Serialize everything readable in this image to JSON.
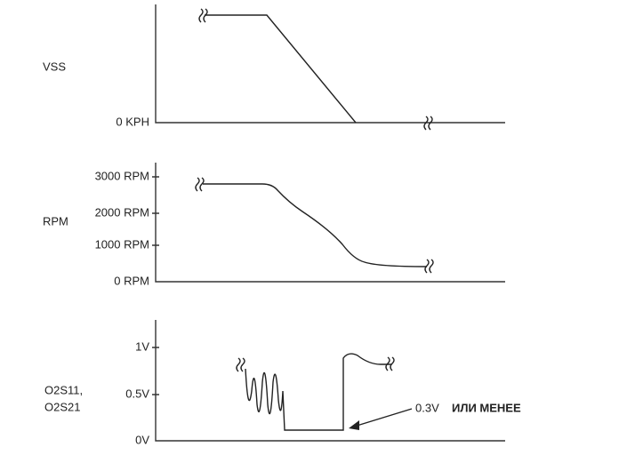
{
  "panels": [
    {
      "label": "VSS",
      "ticks": [
        "0 KPH"
      ]
    },
    {
      "label": "RPM",
      "ticks": [
        "3000 RPM",
        "2000 RPM",
        "1000 RPM",
        "0 RPM"
      ]
    },
    {
      "label": [
        "O2S11,",
        "O2S21"
      ],
      "ticks": [
        "1V",
        "0.5V",
        "0V"
      ],
      "annotation": {
        "value": "0.3V",
        "note": "ИЛИ МЕНЕЕ"
      }
    }
  ]
}
